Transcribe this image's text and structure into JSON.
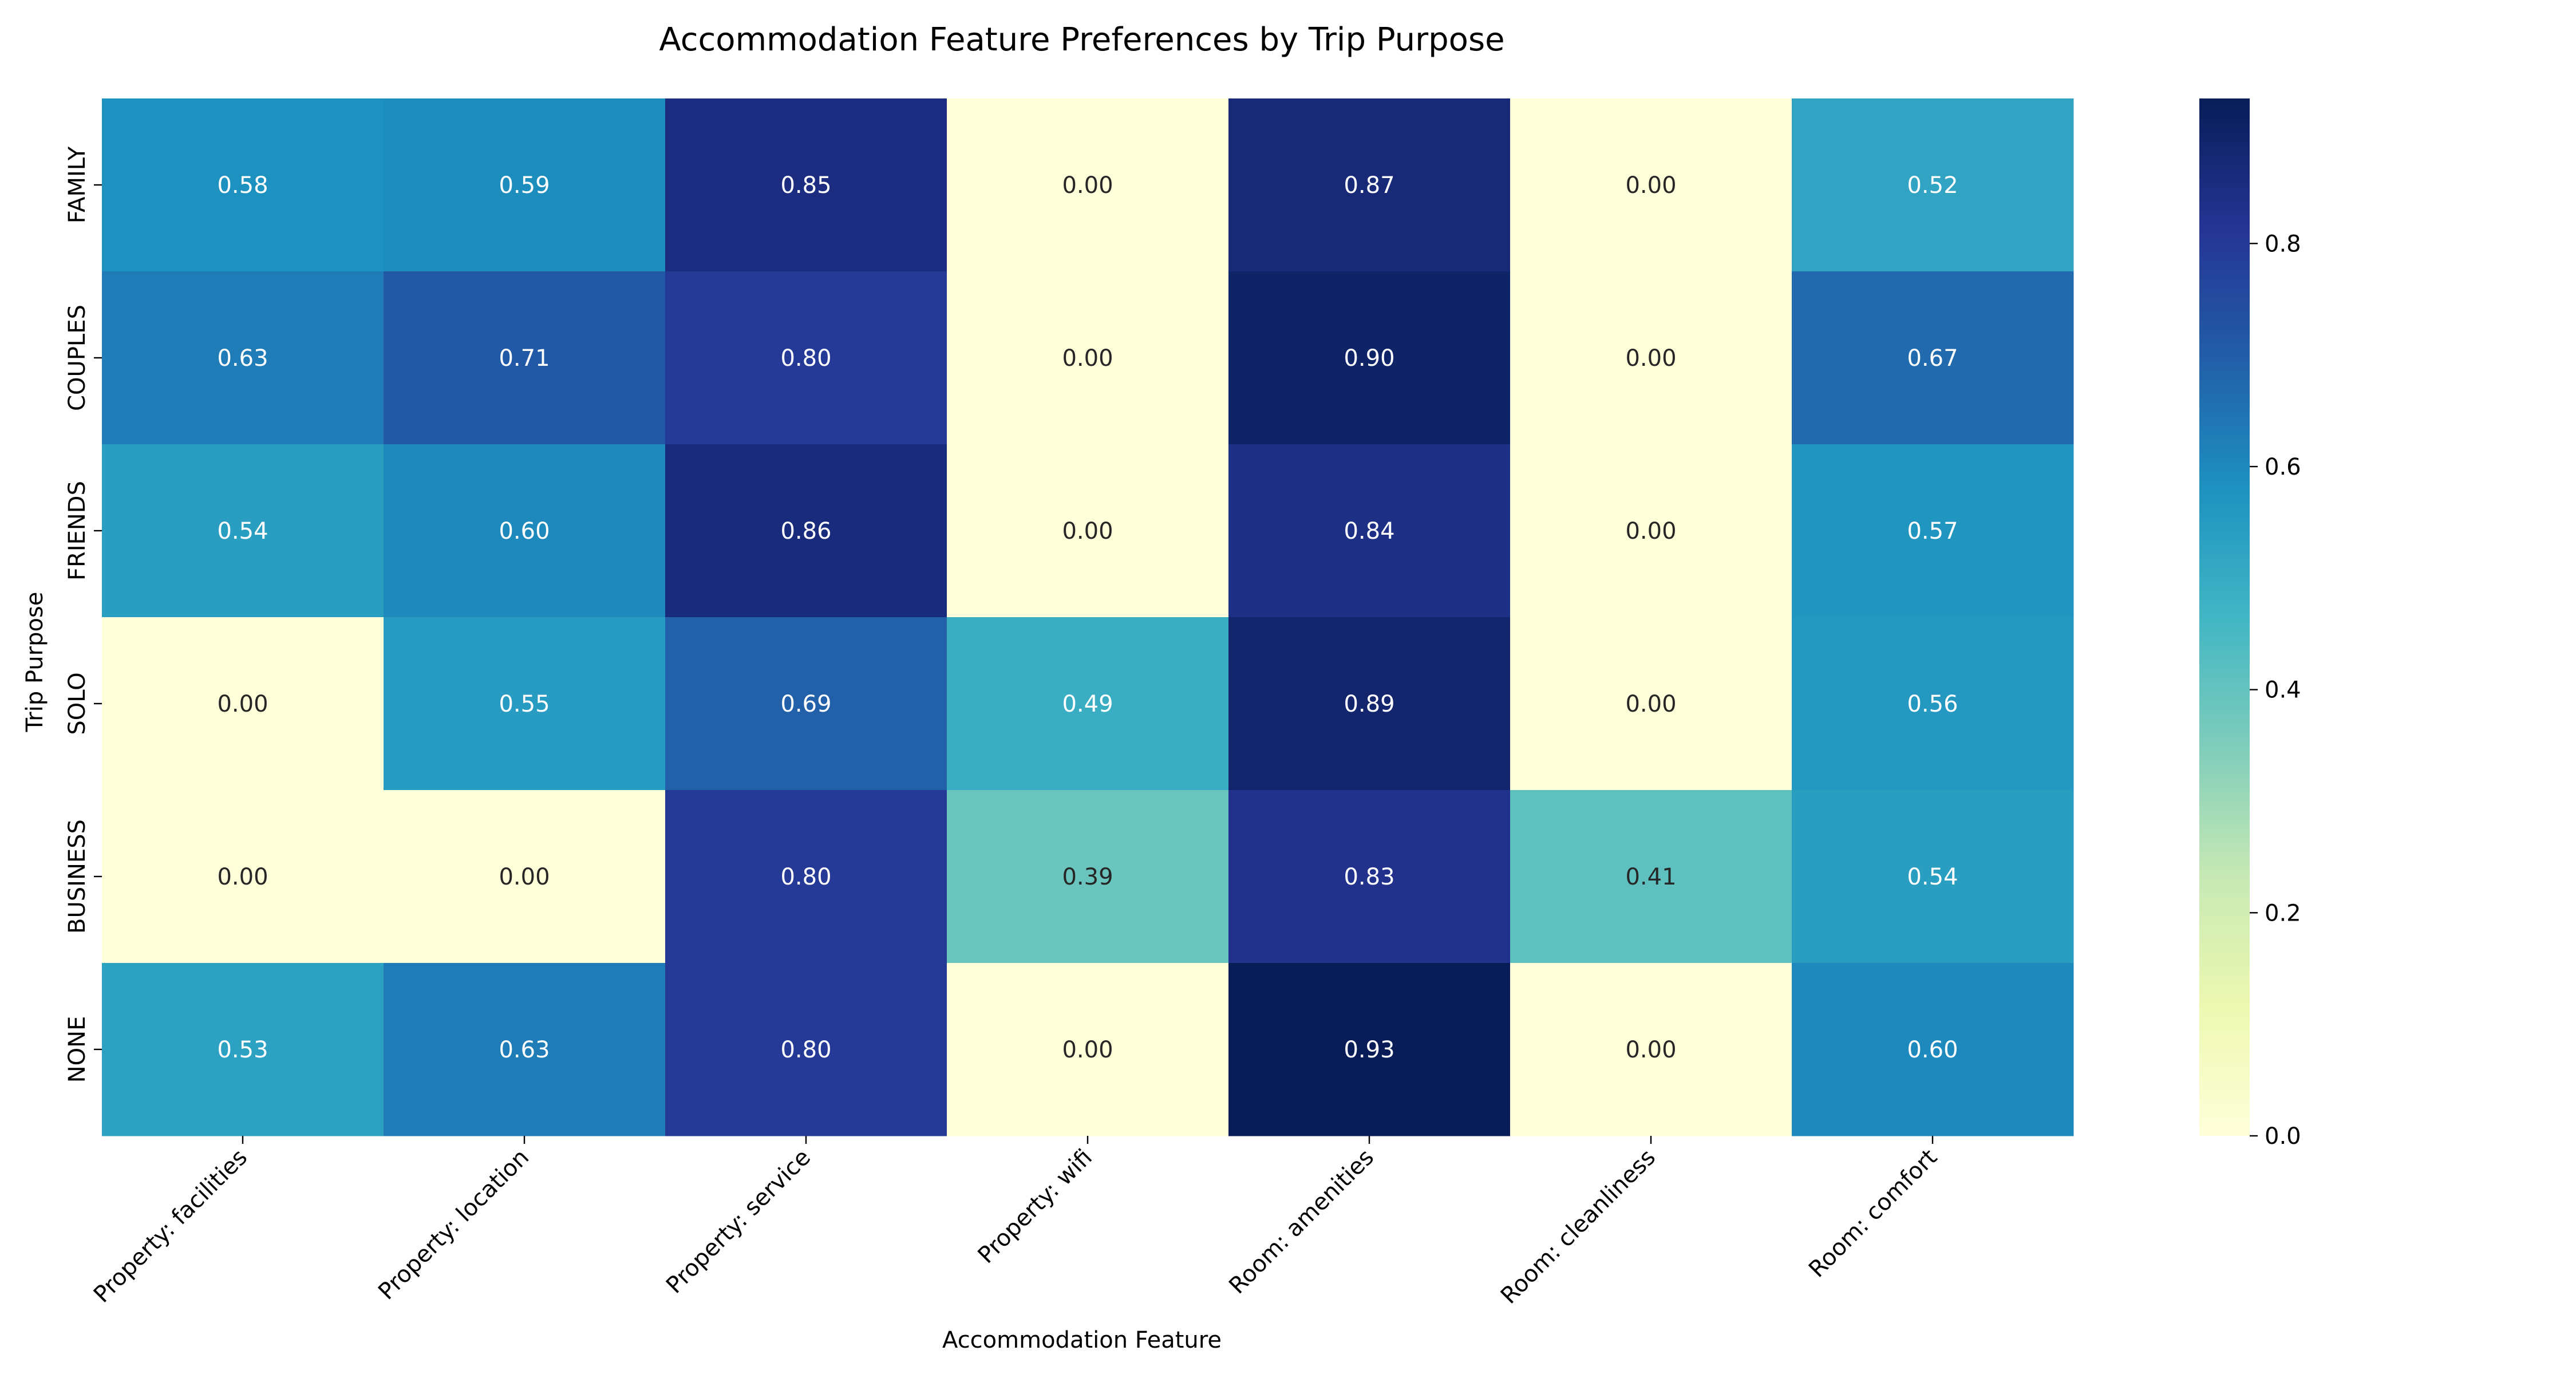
{
  "chart_data": {
    "type": "heatmap",
    "title": "Accommodation Feature Preferences by Trip Purpose",
    "xlabel": "Accommodation Feature",
    "ylabel": "Trip Purpose",
    "x_categories": [
      "Property: facilities",
      "Property: location",
      "Property: service",
      "Property: wifi",
      "Room: amenities",
      "Room: cleanliness",
      "Room: comfort"
    ],
    "y_categories": [
      "FAMILY",
      "COUPLES",
      "FRIENDS",
      "SOLO",
      "BUSINESS",
      "NONE"
    ],
    "values": [
      [
        0.58,
        0.59,
        0.85,
        0.0,
        0.87,
        0.0,
        0.52
      ],
      [
        0.63,
        0.71,
        0.8,
        0.0,
        0.9,
        0.0,
        0.67
      ],
      [
        0.54,
        0.6,
        0.86,
        0.0,
        0.84,
        0.0,
        0.57
      ],
      [
        0.0,
        0.55,
        0.69,
        0.49,
        0.89,
        0.0,
        0.56
      ],
      [
        0.0,
        0.0,
        0.8,
        0.39,
        0.83,
        0.41,
        0.54
      ],
      [
        0.53,
        0.63,
        0.8,
        0.0,
        0.93,
        0.0,
        0.6
      ]
    ],
    "value_format": "0.00",
    "colormap": "YlGnBu",
    "color_range": [
      0.0,
      0.93
    ],
    "colorbar_ticks": [
      "0.0",
      "0.2",
      "0.4",
      "0.6",
      "0.8"
    ],
    "colorbar_tick_values": [
      0.0,
      0.2,
      0.4,
      0.6,
      0.8
    ],
    "colorbar_position": "right"
  }
}
